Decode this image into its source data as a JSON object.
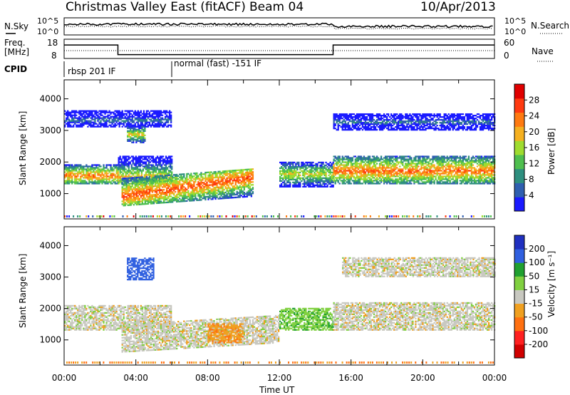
{
  "header": {
    "title": "Christmas Valley East (fitACF)",
    "beam": "Beam 04",
    "date": "10/Apr/2013"
  },
  "noise_panel": {
    "left_label": "N.Sky",
    "right_label": "N.Search",
    "left_ticks": [
      "10^5",
      "10^0"
    ],
    "right_ticks": [
      "10^5",
      "10^0"
    ]
  },
  "freq_panel": {
    "left_label_1": "Freq.",
    "left_label_2": "[MHz]",
    "right_label": "Nave",
    "left_ticks": [
      "18",
      "8"
    ],
    "right_ticks": [
      "60",
      "0"
    ]
  },
  "cpid": {
    "label": "CPID",
    "segments": [
      {
        "start_hour": 0,
        "text": "rbsp 201 IF"
      },
      {
        "start_hour": 6,
        "text": "normal (fast) -151 IF"
      }
    ]
  },
  "x_axis": {
    "label": "Time UT",
    "ticks": [
      "00:00",
      "04:00",
      "08:00",
      "12:00",
      "16:00",
      "20:00",
      "00:00"
    ],
    "range_hours": [
      0,
      24
    ]
  },
  "power_panel": {
    "ylabel": "Slant Range [km]",
    "yticks": [
      "1000",
      "2000",
      "3000",
      "4000"
    ],
    "colorbar_label": "Power [dB]",
    "colorbar_ticks": [
      "4",
      "8",
      "12",
      "16",
      "20",
      "24",
      "28"
    ],
    "colors": [
      "#1a1aff",
      "#2f5fb0",
      "#2e8f7f",
      "#4fbf4f",
      "#9fdc2f",
      "#f5b020",
      "#ff7a10",
      "#ff3a10",
      "#e00000"
    ]
  },
  "velocity_panel": {
    "ylabel": "Slant Range [km]",
    "yticks": [
      "1000",
      "2000",
      "3000",
      "4000"
    ],
    "colorbar_label": "Velocity [m s⁻¹]",
    "colorbar_ticks": [
      "200",
      "100",
      "50",
      "15",
      "-15",
      "-50",
      "-100",
      "-200"
    ],
    "colors": [
      "#2030c0",
      "#3060e0",
      "#20a030",
      "#80d040",
      "#c8c8c0",
      "#f0a020",
      "#ff7010",
      "#ff2020",
      "#d00000"
    ]
  },
  "chart_data": {
    "type": "heatmap",
    "xlabel": "Time UT",
    "ylabel": "Slant Range [km]",
    "xlim": [
      0,
      24
    ],
    "ylim": [
      200,
      4600
    ],
    "frequency_mhz": [
      {
        "t0": 0,
        "t1": 3,
        "value": 15
      },
      {
        "t0": 3,
        "t1": 15,
        "value": 10
      },
      {
        "t0": 15,
        "t1": 24,
        "value": 15
      }
    ],
    "power_bands": [
      {
        "t0": 0,
        "t1": 3,
        "r0": 1300,
        "r1": 1900,
        "core": 1550,
        "level": 24
      },
      {
        "t0": 3,
        "t1": 6,
        "r0": 1300,
        "r1": 2200,
        "core": 1500,
        "level": 20
      },
      {
        "t0": 3.2,
        "t1": 10.5,
        "r0": 600,
        "r1": 1500,
        "core": 900,
        "level": 26
      },
      {
        "t0": 12,
        "t1": 15,
        "r0": 1200,
        "r1": 2000,
        "core": 1600,
        "level": 18
      },
      {
        "t0": 15,
        "t1": 24,
        "r0": 1300,
        "r1": 2200,
        "core": 1700,
        "level": 24
      },
      {
        "t0": 0,
        "t1": 6,
        "r0": 3100,
        "r1": 3600,
        "core": 3300,
        "level": 8
      },
      {
        "t0": 15,
        "t1": 24,
        "r0": 3000,
        "r1": 3500,
        "core": 3250,
        "level": 8
      },
      {
        "t0": 3.5,
        "t1": 4.5,
        "r0": 2600,
        "r1": 3100,
        "core": 2850,
        "level": 20
      }
    ],
    "velocity_bands": [
      {
        "t0": 0,
        "t1": 6,
        "r0": 1300,
        "r1": 2100,
        "value": 0
      },
      {
        "t0": 3.2,
        "t1": 12,
        "r0": 600,
        "r1": 1500,
        "value": 0
      },
      {
        "t0": 8,
        "t1": 10,
        "r0": 900,
        "r1": 1500,
        "value": -40
      },
      {
        "t0": 12,
        "t1": 15,
        "r0": 1300,
        "r1": 2000,
        "value": 40
      },
      {
        "t0": 15,
        "t1": 24,
        "r0": 1300,
        "r1": 2200,
        "value": 0
      },
      {
        "t0": 15.5,
        "t1": 24,
        "r0": 3000,
        "r1": 3600,
        "value": 0
      },
      {
        "t0": 3.5,
        "t1": 5,
        "r0": 2900,
        "r1": 3600,
        "value": 150
      }
    ]
  }
}
